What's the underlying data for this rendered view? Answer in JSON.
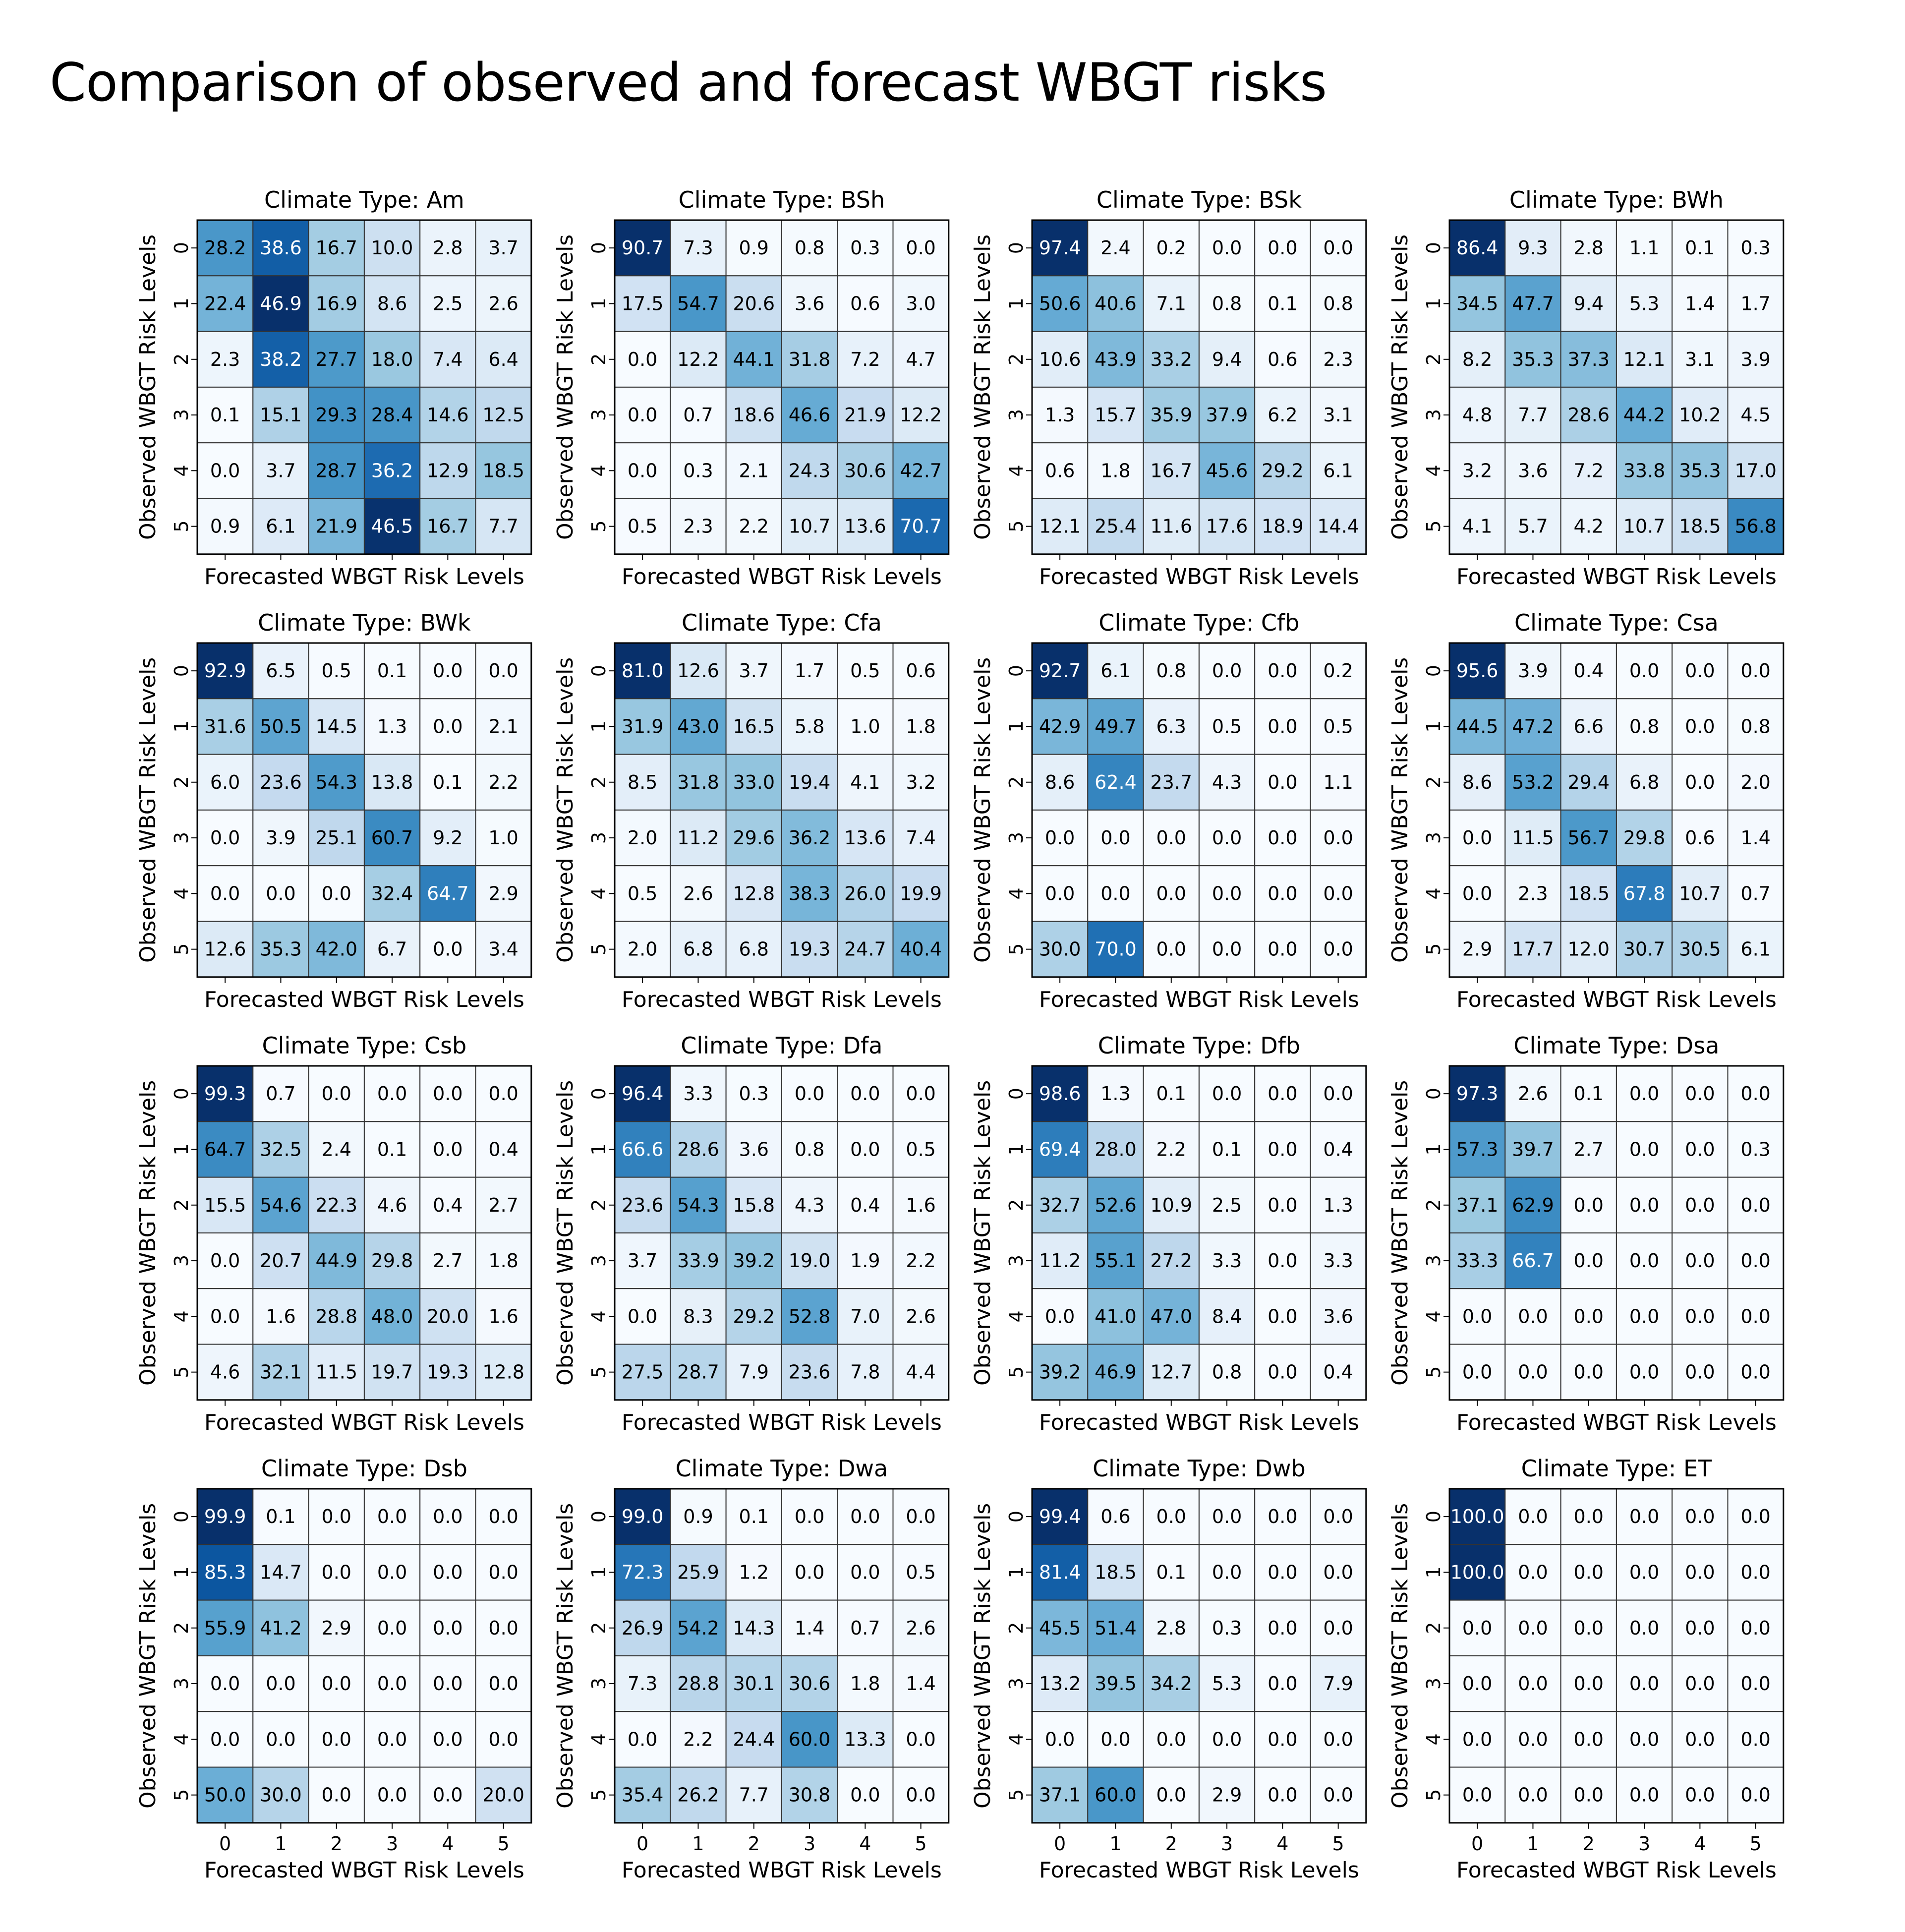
{
  "figure": {
    "title": "Comparison of observed and forecast WBGT risks"
  },
  "colors": {
    "cmap_low": "#f7fbff",
    "cmap_high": "#08306b",
    "text_dark": "#000000",
    "text_light": "#ffffff",
    "grid": "#333333"
  },
  "chart_data": [
    {
      "type": "heatmap",
      "title": "Climate Type: Am",
      "xlabel": "Forecasted WBGT Risk Levels",
      "ylabel": "Observed WBGT Risk Levels",
      "x_ticks": [
        "0",
        "1",
        "2",
        "3",
        "4",
        "5"
      ],
      "y_ticks": [
        "0",
        "1",
        "2",
        "3",
        "4",
        "5"
      ],
      "values": [
        [
          "28.2",
          "38.6",
          "16.7",
          "10.0",
          "2.8",
          "3.7"
        ],
        [
          "22.4",
          "46.9",
          "16.9",
          "8.6",
          "2.5",
          "2.6"
        ],
        [
          "2.3",
          "38.2",
          "27.7",
          "18.0",
          "7.4",
          "6.4"
        ],
        [
          "0.1",
          "15.1",
          "29.3",
          "28.4",
          "14.6",
          "12.5"
        ],
        [
          "0.0",
          "3.7",
          "28.7",
          "36.2",
          "12.9",
          "18.5"
        ],
        [
          "0.9",
          "6.1",
          "21.9",
          "46.5",
          "16.7",
          "7.7"
        ]
      ]
    },
    {
      "type": "heatmap",
      "title": "Climate Type: BSh",
      "xlabel": "Forecasted WBGT Risk Levels",
      "ylabel": "Observed WBGT Risk Levels",
      "x_ticks": [
        "0",
        "1",
        "2",
        "3",
        "4",
        "5"
      ],
      "y_ticks": [
        "0",
        "1",
        "2",
        "3",
        "4",
        "5"
      ],
      "values": [
        [
          "90.7",
          "7.3",
          "0.9",
          "0.8",
          "0.3",
          "0.0"
        ],
        [
          "17.5",
          "54.7",
          "20.6",
          "3.6",
          "0.6",
          "3.0"
        ],
        [
          "0.0",
          "12.2",
          "44.1",
          "31.8",
          "7.2",
          "4.7"
        ],
        [
          "0.0",
          "0.7",
          "18.6",
          "46.6",
          "21.9",
          "12.2"
        ],
        [
          "0.0",
          "0.3",
          "2.1",
          "24.3",
          "30.6",
          "42.7"
        ],
        [
          "0.5",
          "2.3",
          "2.2",
          "10.7",
          "13.6",
          "70.7"
        ]
      ]
    },
    {
      "type": "heatmap",
      "title": "Climate Type: BSk",
      "xlabel": "Forecasted WBGT Risk Levels",
      "ylabel": "Observed WBGT Risk Levels",
      "x_ticks": [
        "0",
        "1",
        "2",
        "3",
        "4",
        "5"
      ],
      "y_ticks": [
        "0",
        "1",
        "2",
        "3",
        "4",
        "5"
      ],
      "values": [
        [
          "97.4",
          "2.4",
          "0.2",
          "0.0",
          "0.0",
          "0.0"
        ],
        [
          "50.6",
          "40.6",
          "7.1",
          "0.8",
          "0.1",
          "0.8"
        ],
        [
          "10.6",
          "43.9",
          "33.2",
          "9.4",
          "0.6",
          "2.3"
        ],
        [
          "1.3",
          "15.7",
          "35.9",
          "37.9",
          "6.2",
          "3.1"
        ],
        [
          "0.6",
          "1.8",
          "16.7",
          "45.6",
          "29.2",
          "6.1"
        ],
        [
          "12.1",
          "25.4",
          "11.6",
          "17.6",
          "18.9",
          "14.4"
        ]
      ]
    },
    {
      "type": "heatmap",
      "title": "Climate Type: BWh",
      "xlabel": "Forecasted WBGT Risk Levels",
      "ylabel": "Observed WBGT Risk Levels",
      "x_ticks": [
        "0",
        "1",
        "2",
        "3",
        "4",
        "5"
      ],
      "y_ticks": [
        "0",
        "1",
        "2",
        "3",
        "4",
        "5"
      ],
      "values": [
        [
          "86.4",
          "9.3",
          "2.8",
          "1.1",
          "0.1",
          "0.3"
        ],
        [
          "34.5",
          "47.7",
          "9.4",
          "5.3",
          "1.4",
          "1.7"
        ],
        [
          "8.2",
          "35.3",
          "37.3",
          "12.1",
          "3.1",
          "3.9"
        ],
        [
          "4.8",
          "7.7",
          "28.6",
          "44.2",
          "10.2",
          "4.5"
        ],
        [
          "3.2",
          "3.6",
          "7.2",
          "33.8",
          "35.3",
          "17.0"
        ],
        [
          "4.1",
          "5.7",
          "4.2",
          "10.7",
          "18.5",
          "56.8"
        ]
      ]
    },
    {
      "type": "heatmap",
      "title": "Climate Type: BWk",
      "xlabel": "Forecasted WBGT Risk Levels",
      "ylabel": "Observed WBGT Risk Levels",
      "x_ticks": [
        "0",
        "1",
        "2",
        "3",
        "4",
        "5"
      ],
      "y_ticks": [
        "0",
        "1",
        "2",
        "3",
        "4",
        "5"
      ],
      "values": [
        [
          "92.9",
          "6.5",
          "0.5",
          "0.1",
          "0.0",
          "0.0"
        ],
        [
          "31.6",
          "50.5",
          "14.5",
          "1.3",
          "0.0",
          "2.1"
        ],
        [
          "6.0",
          "23.6",
          "54.3",
          "13.8",
          "0.1",
          "2.2"
        ],
        [
          "0.0",
          "3.9",
          "25.1",
          "60.7",
          "9.2",
          "1.0"
        ],
        [
          "0.0",
          "0.0",
          "0.0",
          "32.4",
          "64.7",
          "2.9"
        ],
        [
          "12.6",
          "35.3",
          "42.0",
          "6.7",
          "0.0",
          "3.4"
        ]
      ]
    },
    {
      "type": "heatmap",
      "title": "Climate Type: Cfa",
      "xlabel": "Forecasted WBGT Risk Levels",
      "ylabel": "Observed WBGT Risk Levels",
      "x_ticks": [
        "0",
        "1",
        "2",
        "3",
        "4",
        "5"
      ],
      "y_ticks": [
        "0",
        "1",
        "2",
        "3",
        "4",
        "5"
      ],
      "values": [
        [
          "81.0",
          "12.6",
          "3.7",
          "1.7",
          "0.5",
          "0.6"
        ],
        [
          "31.9",
          "43.0",
          "16.5",
          "5.8",
          "1.0",
          "1.8"
        ],
        [
          "8.5",
          "31.8",
          "33.0",
          "19.4",
          "4.1",
          "3.2"
        ],
        [
          "2.0",
          "11.2",
          "29.6",
          "36.2",
          "13.6",
          "7.4"
        ],
        [
          "0.5",
          "2.6",
          "12.8",
          "38.3",
          "26.0",
          "19.9"
        ],
        [
          "2.0",
          "6.8",
          "6.8",
          "19.3",
          "24.7",
          "40.4"
        ]
      ]
    },
    {
      "type": "heatmap",
      "title": "Climate Type: Cfb",
      "xlabel": "Forecasted WBGT Risk Levels",
      "ylabel": "Observed WBGT Risk Levels",
      "x_ticks": [
        "0",
        "1",
        "2",
        "3",
        "4",
        "5"
      ],
      "y_ticks": [
        "0",
        "1",
        "2",
        "3",
        "4",
        "5"
      ],
      "values": [
        [
          "92.7",
          "6.1",
          "0.8",
          "0.0",
          "0.0",
          "0.2"
        ],
        [
          "42.9",
          "49.7",
          "6.3",
          "0.5",
          "0.0",
          "0.5"
        ],
        [
          "8.6",
          "62.4",
          "23.7",
          "4.3",
          "0.0",
          "1.1"
        ],
        [
          "0.0",
          "0.0",
          "0.0",
          "0.0",
          "0.0",
          "0.0"
        ],
        [
          "0.0",
          "0.0",
          "0.0",
          "0.0",
          "0.0",
          "0.0"
        ],
        [
          "30.0",
          "70.0",
          "0.0",
          "0.0",
          "0.0",
          "0.0"
        ]
      ]
    },
    {
      "type": "heatmap",
      "title": "Climate Type: Csa",
      "xlabel": "Forecasted WBGT Risk Levels",
      "ylabel": "Observed WBGT Risk Levels",
      "x_ticks": [
        "0",
        "1",
        "2",
        "3",
        "4",
        "5"
      ],
      "y_ticks": [
        "0",
        "1",
        "2",
        "3",
        "4",
        "5"
      ],
      "values": [
        [
          "95.6",
          "3.9",
          "0.4",
          "0.0",
          "0.0",
          "0.0"
        ],
        [
          "44.5",
          "47.2",
          "6.6",
          "0.8",
          "0.0",
          "0.8"
        ],
        [
          "8.6",
          "53.2",
          "29.4",
          "6.8",
          "0.0",
          "2.0"
        ],
        [
          "0.0",
          "11.5",
          "56.7",
          "29.8",
          "0.6",
          "1.4"
        ],
        [
          "0.0",
          "2.3",
          "18.5",
          "67.8",
          "10.7",
          "0.7"
        ],
        [
          "2.9",
          "17.7",
          "12.0",
          "30.7",
          "30.5",
          "6.1"
        ]
      ]
    },
    {
      "type": "heatmap",
      "title": "Climate Type: Csb",
      "xlabel": "Forecasted WBGT Risk Levels",
      "ylabel": "Observed WBGT Risk Levels",
      "x_ticks": [
        "0",
        "1",
        "2",
        "3",
        "4",
        "5"
      ],
      "y_ticks": [
        "0",
        "1",
        "2",
        "3",
        "4",
        "5"
      ],
      "values": [
        [
          "99.3",
          "0.7",
          "0.0",
          "0.0",
          "0.0",
          "0.0"
        ],
        [
          "64.7",
          "32.5",
          "2.4",
          "0.1",
          "0.0",
          "0.4"
        ],
        [
          "15.5",
          "54.6",
          "22.3",
          "4.6",
          "0.4",
          "2.7"
        ],
        [
          "0.0",
          "20.7",
          "44.9",
          "29.8",
          "2.7",
          "1.8"
        ],
        [
          "0.0",
          "1.6",
          "28.8",
          "48.0",
          "20.0",
          "1.6"
        ],
        [
          "4.6",
          "32.1",
          "11.5",
          "19.7",
          "19.3",
          "12.8"
        ]
      ]
    },
    {
      "type": "heatmap",
      "title": "Climate Type: Dfa",
      "xlabel": "Forecasted WBGT Risk Levels",
      "ylabel": "Observed WBGT Risk Levels",
      "x_ticks": [
        "0",
        "1",
        "2",
        "3",
        "4",
        "5"
      ],
      "y_ticks": [
        "0",
        "1",
        "2",
        "3",
        "4",
        "5"
      ],
      "values": [
        [
          "96.4",
          "3.3",
          "0.3",
          "0.0",
          "0.0",
          "0.0"
        ],
        [
          "66.6",
          "28.6",
          "3.6",
          "0.8",
          "0.0",
          "0.5"
        ],
        [
          "23.6",
          "54.3",
          "15.8",
          "4.3",
          "0.4",
          "1.6"
        ],
        [
          "3.7",
          "33.9",
          "39.2",
          "19.0",
          "1.9",
          "2.2"
        ],
        [
          "0.0",
          "8.3",
          "29.2",
          "52.8",
          "7.0",
          "2.6"
        ],
        [
          "27.5",
          "28.7",
          "7.9",
          "23.6",
          "7.8",
          "4.4"
        ]
      ]
    },
    {
      "type": "heatmap",
      "title": "Climate Type: Dfb",
      "xlabel": "Forecasted WBGT Risk Levels",
      "ylabel": "Observed WBGT Risk Levels",
      "x_ticks": [
        "0",
        "1",
        "2",
        "3",
        "4",
        "5"
      ],
      "y_ticks": [
        "0",
        "1",
        "2",
        "3",
        "4",
        "5"
      ],
      "values": [
        [
          "98.6",
          "1.3",
          "0.1",
          "0.0",
          "0.0",
          "0.0"
        ],
        [
          "69.4",
          "28.0",
          "2.2",
          "0.1",
          "0.0",
          "0.4"
        ],
        [
          "32.7",
          "52.6",
          "10.9",
          "2.5",
          "0.0",
          "1.3"
        ],
        [
          "11.2",
          "55.1",
          "27.2",
          "3.3",
          "0.0",
          "3.3"
        ],
        [
          "0.0",
          "41.0",
          "47.0",
          "8.4",
          "0.0",
          "3.6"
        ],
        [
          "39.2",
          "46.9",
          "12.7",
          "0.8",
          "0.0",
          "0.4"
        ]
      ]
    },
    {
      "type": "heatmap",
      "title": "Climate Type: Dsa",
      "xlabel": "Forecasted WBGT Risk Levels",
      "ylabel": "Observed WBGT Risk Levels",
      "x_ticks": [
        "0",
        "1",
        "2",
        "3",
        "4",
        "5"
      ],
      "y_ticks": [
        "0",
        "1",
        "2",
        "3",
        "4",
        "5"
      ],
      "values": [
        [
          "97.3",
          "2.6",
          "0.1",
          "0.0",
          "0.0",
          "0.0"
        ],
        [
          "57.3",
          "39.7",
          "2.7",
          "0.0",
          "0.0",
          "0.3"
        ],
        [
          "37.1",
          "62.9",
          "0.0",
          "0.0",
          "0.0",
          "0.0"
        ],
        [
          "33.3",
          "66.7",
          "0.0",
          "0.0",
          "0.0",
          "0.0"
        ],
        [
          "0.0",
          "0.0",
          "0.0",
          "0.0",
          "0.0",
          "0.0"
        ],
        [
          "0.0",
          "0.0",
          "0.0",
          "0.0",
          "0.0",
          "0.0"
        ]
      ]
    },
    {
      "type": "heatmap",
      "title": "Climate Type: Dsb",
      "xlabel": "Forecasted WBGT Risk Levels",
      "ylabel": "Observed WBGT Risk Levels",
      "x_ticks": [
        "0",
        "1",
        "2",
        "3",
        "4",
        "5"
      ],
      "y_ticks": [
        "0",
        "1",
        "2",
        "3",
        "4",
        "5"
      ],
      "values": [
        [
          "99.9",
          "0.1",
          "0.0",
          "0.0",
          "0.0",
          "0.0"
        ],
        [
          "85.3",
          "14.7",
          "0.0",
          "0.0",
          "0.0",
          "0.0"
        ],
        [
          "55.9",
          "41.2",
          "2.9",
          "0.0",
          "0.0",
          "0.0"
        ],
        [
          "0.0",
          "0.0",
          "0.0",
          "0.0",
          "0.0",
          "0.0"
        ],
        [
          "0.0",
          "0.0",
          "0.0",
          "0.0",
          "0.0",
          "0.0"
        ],
        [
          "50.0",
          "30.0",
          "0.0",
          "0.0",
          "0.0",
          "20.0"
        ]
      ]
    },
    {
      "type": "heatmap",
      "title": "Climate Type: Dwa",
      "xlabel": "Forecasted WBGT Risk Levels",
      "ylabel": "Observed WBGT Risk Levels",
      "x_ticks": [
        "0",
        "1",
        "2",
        "3",
        "4",
        "5"
      ],
      "y_ticks": [
        "0",
        "1",
        "2",
        "3",
        "4",
        "5"
      ],
      "values": [
        [
          "99.0",
          "0.9",
          "0.1",
          "0.0",
          "0.0",
          "0.0"
        ],
        [
          "72.3",
          "25.9",
          "1.2",
          "0.0",
          "0.0",
          "0.5"
        ],
        [
          "26.9",
          "54.2",
          "14.3",
          "1.4",
          "0.7",
          "2.6"
        ],
        [
          "7.3",
          "28.8",
          "30.1",
          "30.6",
          "1.8",
          "1.4"
        ],
        [
          "0.0",
          "2.2",
          "24.4",
          "60.0",
          "13.3",
          "0.0"
        ],
        [
          "35.4",
          "26.2",
          "7.7",
          "30.8",
          "0.0",
          "0.0"
        ]
      ]
    },
    {
      "type": "heatmap",
      "title": "Climate Type: Dwb",
      "xlabel": "Forecasted WBGT Risk Levels",
      "ylabel": "Observed WBGT Risk Levels",
      "x_ticks": [
        "0",
        "1",
        "2",
        "3",
        "4",
        "5"
      ],
      "y_ticks": [
        "0",
        "1",
        "2",
        "3",
        "4",
        "5"
      ],
      "values": [
        [
          "99.4",
          "0.6",
          "0.0",
          "0.0",
          "0.0",
          "0.0"
        ],
        [
          "81.4",
          "18.5",
          "0.1",
          "0.0",
          "0.0",
          "0.0"
        ],
        [
          "45.5",
          "51.4",
          "2.8",
          "0.3",
          "0.0",
          "0.0"
        ],
        [
          "13.2",
          "39.5",
          "34.2",
          "5.3",
          "0.0",
          "7.9"
        ],
        [
          "0.0",
          "0.0",
          "0.0",
          "0.0",
          "0.0",
          "0.0"
        ],
        [
          "37.1",
          "60.0",
          "0.0",
          "2.9",
          "0.0",
          "0.0"
        ]
      ]
    },
    {
      "type": "heatmap",
      "title": "Climate Type: ET",
      "xlabel": "Forecasted WBGT Risk Levels",
      "ylabel": "Observed WBGT Risk Levels",
      "x_ticks": [
        "0",
        "1",
        "2",
        "3",
        "4",
        "5"
      ],
      "y_ticks": [
        "0",
        "1",
        "2",
        "3",
        "4",
        "5"
      ],
      "values": [
        [
          "100.0",
          "0.0",
          "0.0",
          "0.0",
          "0.0",
          "0.0"
        ],
        [
          "100.0",
          "0.0",
          "0.0",
          "0.0",
          "0.0",
          "0.0"
        ],
        [
          "0.0",
          "0.0",
          "0.0",
          "0.0",
          "0.0",
          "0.0"
        ],
        [
          "0.0",
          "0.0",
          "0.0",
          "0.0",
          "0.0",
          "0.0"
        ],
        [
          "0.0",
          "0.0",
          "0.0",
          "0.0",
          "0.0",
          "0.0"
        ],
        [
          "0.0",
          "0.0",
          "0.0",
          "0.0",
          "0.0",
          "0.0"
        ]
      ]
    }
  ]
}
